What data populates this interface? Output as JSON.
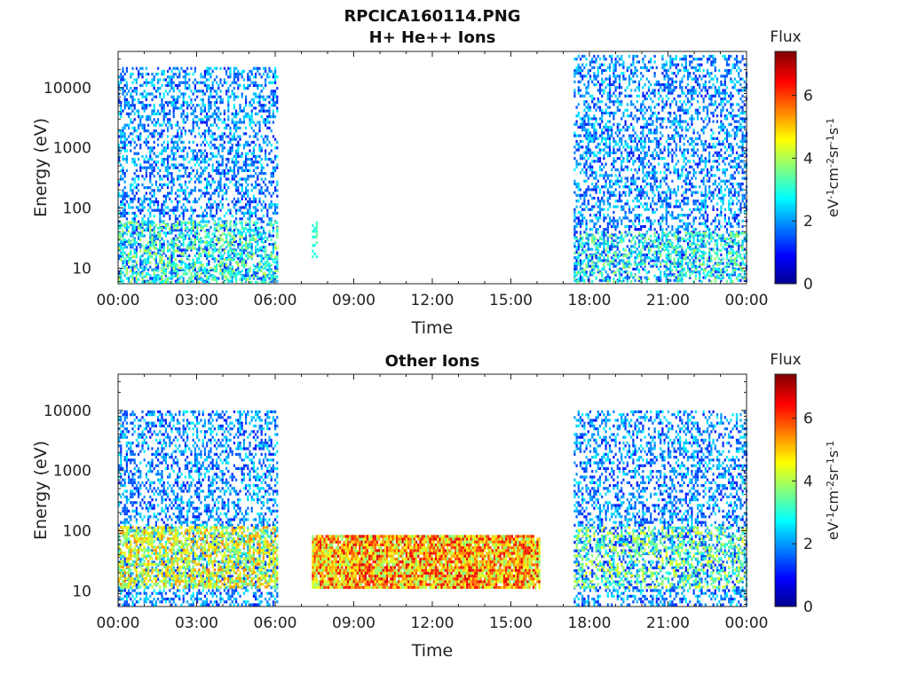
{
  "figure_title": "RPCICA160114.PNG",
  "chart_data": [
    {
      "type": "heatmap",
      "title": "H+ He++ Ions",
      "xlabel": "Time",
      "ylabel": "Energy (eV)",
      "x_ticks": [
        "00:00",
        "03:00",
        "06:00",
        "09:00",
        "12:00",
        "15:00",
        "18:00",
        "21:00",
        "00:00"
      ],
      "x_range_hours": [
        0,
        24
      ],
      "y_scale": "log",
      "y_ticks": [
        "10",
        "100",
        "1000",
        "10000"
      ],
      "y_tick_values": [
        10,
        100,
        1000,
        10000
      ],
      "y_range": [
        5.5,
        40000
      ],
      "colorbar": {
        "title": "Flux",
        "unit": "eV-1cm-2sr-1s-1",
        "unit_parts": [
          "eV",
          "-1",
          "cm",
          "-2",
          "sr",
          "-1",
          "s",
          "-1"
        ],
        "range": [
          0,
          7.4
        ],
        "ticks": [
          "0",
          "2",
          "4",
          "6"
        ],
        "tick_values": [
          0,
          2,
          4,
          6
        ],
        "colormap": "jet"
      },
      "regions": [
        {
          "t_start": 0.0,
          "t_end": 6.1,
          "e_min": 6,
          "e_max": 22000,
          "flux_low": 1.0,
          "flux_high": 2.8,
          "density": 0.42
        },
        {
          "t_start": 0.0,
          "t_end": 6.1,
          "e_min": 6,
          "e_max": 60,
          "flux_low": 2.6,
          "flux_high": 4.2,
          "density": 0.35
        },
        {
          "t_start": 7.4,
          "t_end": 7.55,
          "e_min": 15,
          "e_max": 60,
          "flux_low": 2.8,
          "flux_high": 3.6,
          "density": 0.5
        },
        {
          "t_start": 17.4,
          "t_end": 24.0,
          "e_min": 6,
          "e_max": 35000,
          "flux_low": 1.0,
          "flux_high": 2.8,
          "density": 0.42
        },
        {
          "t_start": 17.4,
          "t_end": 24.0,
          "e_min": 6,
          "e_max": 40,
          "flux_low": 2.8,
          "flux_high": 4.0,
          "density": 0.25
        }
      ]
    },
    {
      "type": "heatmap",
      "title": "Other Ions",
      "xlabel": "Time",
      "ylabel": "Energy (eV)",
      "x_ticks": [
        "00:00",
        "03:00",
        "06:00",
        "09:00",
        "12:00",
        "15:00",
        "18:00",
        "21:00",
        "00:00"
      ],
      "x_range_hours": [
        0,
        24
      ],
      "y_scale": "log",
      "y_ticks": [
        "10",
        "100",
        "1000",
        "10000"
      ],
      "y_tick_values": [
        10,
        100,
        1000,
        10000
      ],
      "y_range": [
        5.5,
        40000
      ],
      "colorbar": {
        "title": "Flux",
        "unit": "eV-1cm-2sr-1s-1",
        "unit_parts": [
          "eV",
          "-1",
          "cm",
          "-2",
          "sr",
          "-1",
          "s",
          "-1"
        ],
        "range": [
          0,
          7.4
        ],
        "ticks": [
          "0",
          "2",
          "4",
          "6"
        ],
        "tick_values": [
          0,
          2,
          4,
          6
        ],
        "colormap": "jet"
      },
      "regions": [
        {
          "t_start": 0.0,
          "t_end": 6.1,
          "e_min": 6,
          "e_max": 10000,
          "flux_low": 1.0,
          "flux_high": 2.8,
          "density": 0.4
        },
        {
          "t_start": 0.0,
          "t_end": 6.1,
          "e_min": 12,
          "e_max": 120,
          "flux_low": 3.3,
          "flux_high": 5.6,
          "density": 0.6
        },
        {
          "t_start": 7.4,
          "t_end": 16.1,
          "e_min": 12,
          "e_max": 85,
          "flux_low": 3.6,
          "flux_high": 6.8,
          "density": 0.95
        },
        {
          "t_start": 17.4,
          "t_end": 24.0,
          "e_min": 6,
          "e_max": 10000,
          "flux_low": 1.0,
          "flux_high": 2.8,
          "density": 0.4
        },
        {
          "t_start": 17.4,
          "t_end": 24.0,
          "e_min": 12,
          "e_max": 120,
          "flux_low": 3.0,
          "flux_high": 4.6,
          "density": 0.3
        }
      ]
    }
  ]
}
